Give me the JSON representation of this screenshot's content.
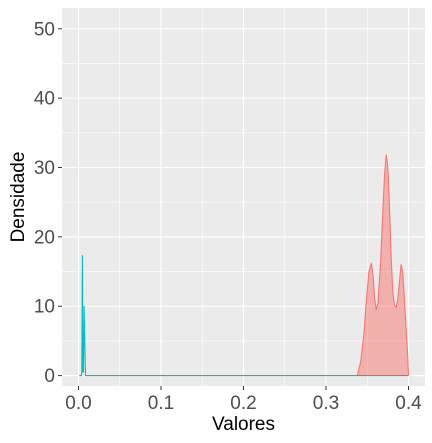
{
  "chart_data": {
    "type": "area",
    "title": "",
    "xlabel": "Valores",
    "ylabel": "Densidade",
    "xlim": [
      -0.02,
      0.42
    ],
    "ylim": [
      -1.5,
      53
    ],
    "x_ticks": [
      0.0,
      0.1,
      0.2,
      0.3,
      0.4
    ],
    "x_tick_labels": [
      "0.0",
      "0.1",
      "0.2",
      "0.3",
      "0.4"
    ],
    "y_ticks": [
      0,
      10,
      20,
      30,
      40,
      50
    ],
    "y_tick_labels": [
      "0",
      "10",
      "20",
      "30",
      "40",
      "50"
    ],
    "grid": true,
    "legend": "none",
    "series": [
      {
        "color": "#00BFC4",
        "fill": "none",
        "x": [
          0.001,
          0.0016,
          0.0025,
          0.0035,
          0.004,
          0.0047,
          0.0053,
          0.006,
          0.0068,
          0.0085,
          0.012,
          0.05,
          0.1,
          0.2,
          0.3,
          0.4
        ],
        "y": [
          0,
          0,
          0,
          0,
          0.5,
          17.3,
          0.5,
          0.5,
          10,
          0,
          0,
          0,
          0,
          0,
          0,
          0
        ]
      },
      {
        "color": "#F8766D",
        "fill": "#F8766D",
        "fill_opacity": 0.5,
        "x": [
          0.338,
          0.342,
          0.346,
          0.349,
          0.352,
          0.355,
          0.357,
          0.359,
          0.361,
          0.363,
          0.366,
          0.369,
          0.371,
          0.373,
          0.375,
          0.377,
          0.379,
          0.381,
          0.383,
          0.385,
          0.387,
          0.389,
          0.391,
          0.393,
          0.395,
          0.397,
          0.399,
          0.4
        ],
        "y": [
          0,
          2,
          6,
          11,
          15,
          16.2,
          14.5,
          11,
          9.5,
          10.5,
          16,
          24,
          29,
          31.8,
          30,
          24,
          17,
          12,
          10.2,
          9.8,
          11,
          13.5,
          16,
          15,
          11,
          7,
          3,
          0
        ]
      }
    ]
  }
}
